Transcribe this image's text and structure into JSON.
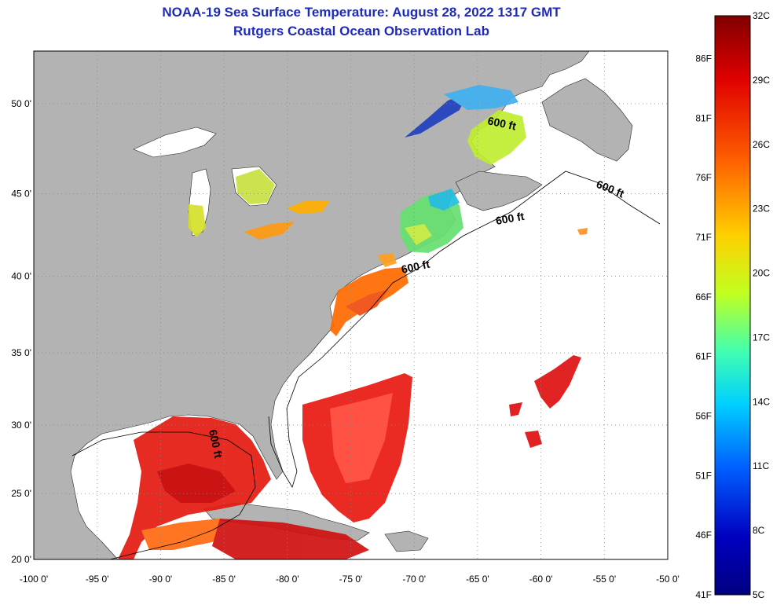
{
  "title": {
    "line1": "NOAA-19 Sea Surface Temperature:  August 28, 2022 1317 GMT",
    "line2": "Rutgers Coastal Ocean Observation Lab"
  },
  "map": {
    "lat_ticks": [
      {
        "lat": 50,
        "label": "50 0'"
      },
      {
        "lat": 45,
        "label": "45 0'"
      },
      {
        "lat": 40,
        "label": "40 0'"
      },
      {
        "lat": 35,
        "label": "35 0'"
      },
      {
        "lat": 30,
        "label": "30 0'"
      },
      {
        "lat": 25,
        "label": "25 0'"
      },
      {
        "lat": 20,
        "label": "20 0'"
      }
    ],
    "lon_ticks": [
      {
        "lon": -100,
        "label": "-100 0'"
      },
      {
        "lon": -95,
        "label": "-95 0'"
      },
      {
        "lon": -90,
        "label": "-90 0'"
      },
      {
        "lon": -85,
        "label": "-85 0'"
      },
      {
        "lon": -80,
        "label": "-80 0'"
      },
      {
        "lon": -75,
        "label": "-75 0'"
      },
      {
        "lon": -70,
        "label": "-70 0'"
      },
      {
        "lon": -65,
        "label": "-65 0'"
      },
      {
        "lon": -60,
        "label": "-60 0'"
      },
      {
        "lon": -55,
        "label": "-55 0'"
      },
      {
        "lon": -50,
        "label": "-50 0'"
      }
    ],
    "contour_label": "600 ft",
    "colors": {
      "land": "#b3b3b3",
      "ocean": "#ffffff",
      "grid": "#888888"
    }
  },
  "colorbar": {
    "celsius": [
      {
        "value": 32,
        "label": "32C"
      },
      {
        "value": 29,
        "label": "29C"
      },
      {
        "value": 26,
        "label": "26C"
      },
      {
        "value": 23,
        "label": "23C"
      },
      {
        "value": 20,
        "label": "20C"
      },
      {
        "value": 17,
        "label": "17C"
      },
      {
        "value": 14,
        "label": "14C"
      },
      {
        "value": 11,
        "label": "11C"
      },
      {
        "value": 8,
        "label": "8C"
      },
      {
        "value": 5,
        "label": "5C"
      }
    ],
    "fahrenheit": [
      {
        "value": 86,
        "label": "86F"
      },
      {
        "value": 81,
        "label": "81F"
      },
      {
        "value": 76,
        "label": "76F"
      },
      {
        "value": 71,
        "label": "71F"
      },
      {
        "value": 66,
        "label": "66F"
      },
      {
        "value": 61,
        "label": "61F"
      },
      {
        "value": 56,
        "label": "56F"
      },
      {
        "value": 51,
        "label": "51F"
      },
      {
        "value": 46,
        "label": "46F"
      },
      {
        "value": 41,
        "label": "41F"
      }
    ],
    "gradient": [
      "#800000",
      "#e00000",
      "#ff6000",
      "#ffd000",
      "#c0ff20",
      "#40ffb0",
      "#00d0ff",
      "#0060ff",
      "#0000c0",
      "#000080"
    ]
  }
}
